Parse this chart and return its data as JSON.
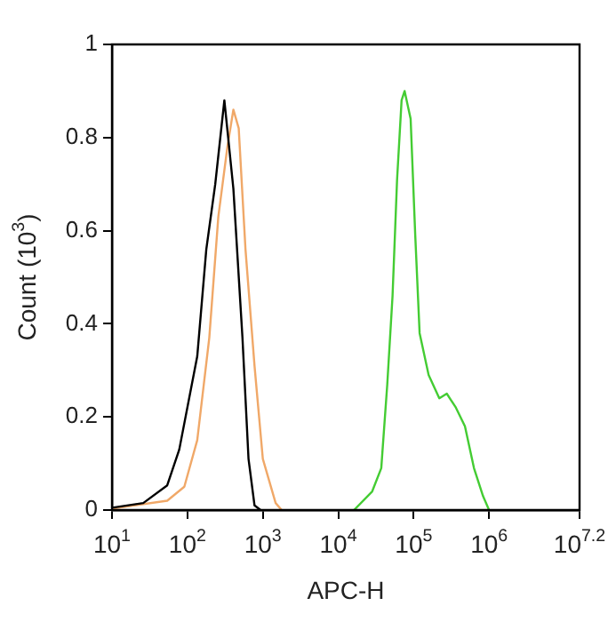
{
  "chart_data": {
    "type": "line",
    "xlabel": "APC-H",
    "ylabel": "Count (10$^{3}$)",
    "log": "x",
    "xlim": [
      10,
      15848932
    ],
    "xticks": [
      {
        "value": 10,
        "label": "10$^{1}$"
      },
      {
        "value": 100,
        "label": "10$^{2}$"
      },
      {
        "value": 1000,
        "label": "10$^{3}$"
      },
      {
        "value": 10000,
        "label": "10$^{4}$"
      },
      {
        "value": 100000,
        "label": "10$^{5}$"
      },
      {
        "value": 1000000,
        "label": "10$^{6}$"
      },
      {
        "value": 15848932,
        "label": "10$^{7.2}$"
      }
    ],
    "ylim": [
      0,
      1
    ],
    "yticks": [
      0,
      0.2,
      0.4,
      0.6,
      0.8,
      1
    ],
    "grid": false,
    "legend": false,
    "marker": "none",
    "line_style": "solid",
    "series": [
      {
        "color": "#000000",
        "x": [
          10,
          26,
          54,
          78,
          135,
          178,
          234,
          309,
          407,
          537,
          646,
          776,
          933
        ],
        "values": [
          0.005,
          0.015,
          0.053,
          0.13,
          0.33,
          0.56,
          0.7,
          0.88,
          0.69,
          0.37,
          0.11,
          0.01,
          0
        ]
      },
      {
        "color": "#f0a868",
        "x": [
          10,
          54,
          91,
          135,
          195,
          257,
          339,
          407,
          479,
          589,
          776,
          1000,
          1479,
          1778
        ],
        "values": [
          0.003,
          0.02,
          0.05,
          0.15,
          0.37,
          0.63,
          0.78,
          0.86,
          0.82,
          0.56,
          0.31,
          0.11,
          0.015,
          0
        ]
      },
      {
        "color": "#44cc33",
        "x": [
          16200,
          28200,
          37200,
          44700,
          52500,
          60300,
          69200,
          75900,
          91200,
          105000,
          120000,
          158000,
          219000,
          275000,
          363000,
          479000,
          631000,
          832000,
          1000000
        ],
        "values": [
          0,
          0.04,
          0.09,
          0.27,
          0.46,
          0.71,
          0.88,
          0.9,
          0.84,
          0.59,
          0.38,
          0.29,
          0.24,
          0.25,
          0.22,
          0.18,
          0.09,
          0.03,
          0
        ]
      }
    ]
  }
}
